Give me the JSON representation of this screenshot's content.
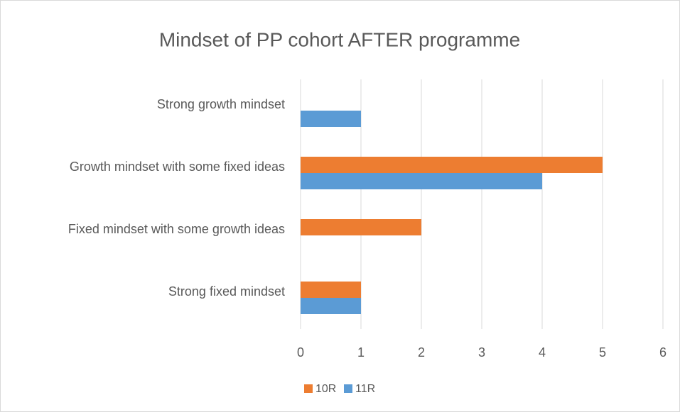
{
  "chart_data": {
    "type": "bar",
    "orientation": "horizontal",
    "title": "Mindset of PP cohort AFTER programme",
    "categories": [
      "Strong growth mindset",
      "Growth mindset with some fixed ideas",
      "Fixed mindset with some growth ideas",
      "Strong fixed mindset"
    ],
    "series": [
      {
        "name": "10R",
        "color": "#ED7D31",
        "values": [
          0,
          5,
          2,
          1
        ]
      },
      {
        "name": "11R",
        "color": "#5B9BD5",
        "values": [
          1,
          4,
          0,
          1
        ]
      }
    ],
    "xlim": [
      0,
      6
    ],
    "xticks": [
      0,
      1,
      2,
      3,
      4,
      5,
      6
    ],
    "grid": true,
    "legend": "bottom"
  }
}
